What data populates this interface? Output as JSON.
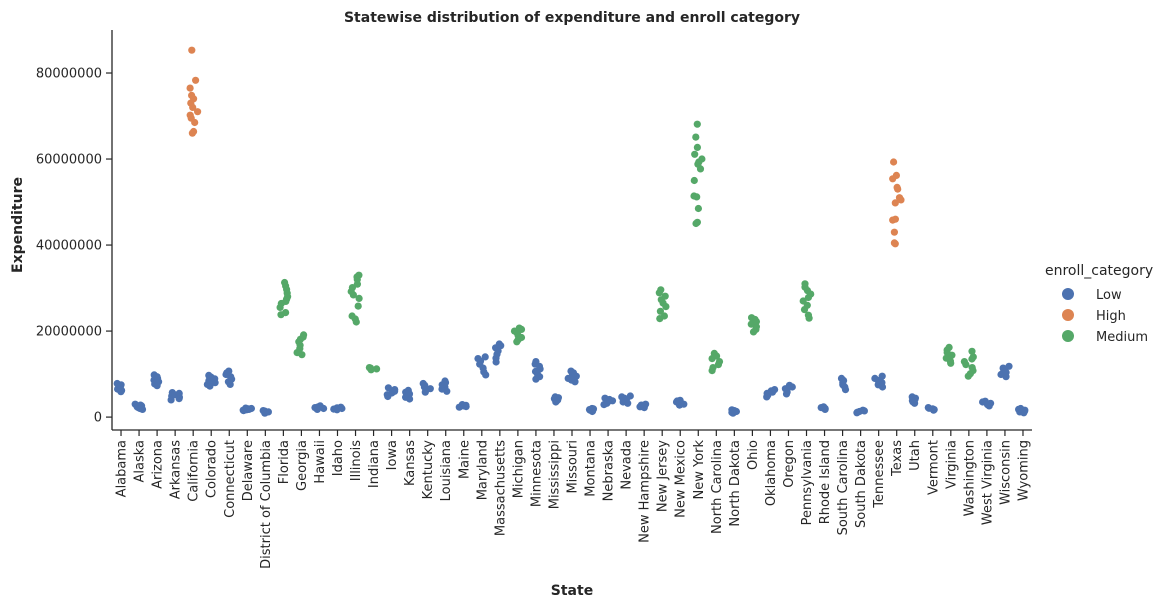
{
  "chart_data": {
    "type": "scatter",
    "subtype": "strip",
    "title": "Statewise distribution of expenditure and enroll category",
    "xlabel": "State",
    "ylabel": "Expenditure",
    "ylim": [
      -3000000,
      90000000
    ],
    "yticks": [
      0,
      20000000,
      40000000,
      60000000,
      80000000
    ],
    "ytick_labels": [
      "0",
      "20000000",
      "40000000",
      "60000000",
      "80000000"
    ],
    "grid": false,
    "legend": {
      "title": "enroll_category",
      "placement": "right",
      "entries": [
        "Low",
        "High",
        "Medium"
      ]
    },
    "colors": {
      "Low": "#4c72b0",
      "High": "#dd8452",
      "Medium": "#55a868"
    },
    "categories": [
      "Alabama",
      "Alaska",
      "Arizona",
      "Arkansas",
      "California",
      "Colorado",
      "Connecticut",
      "Delaware",
      "District of Columbia",
      "Florida",
      "Georgia",
      "Hawaii",
      "Idaho",
      "Illinois",
      "Indiana",
      "Iowa",
      "Kansas",
      "Kentucky",
      "Louisiana",
      "Maine",
      "Maryland",
      "Massachusetts",
      "Michigan",
      "Minnesota",
      "Mississippi",
      "Missouri",
      "Montana",
      "Nebraska",
      "Nevada",
      "New Hampshire",
      "New Jersey",
      "New Mexico",
      "New York",
      "North Carolina",
      "North Dakota",
      "Ohio",
      "Oklahoma",
      "Oregon",
      "Pennsylvania",
      "Rhode Island",
      "South Carolina",
      "South Dakota",
      "Tennessee",
      "Texas",
      "Utah",
      "Vermont",
      "Virginia",
      "Washington",
      "West Virginia",
      "Wisconsin",
      "Wyoming"
    ],
    "points": [
      {
        "state": "Alabama",
        "category": "Low",
        "values": [
          5900000,
          6200000,
          6500000,
          6900000,
          7200000,
          7500000,
          7800000
        ]
      },
      {
        "state": "Alaska",
        "category": "Low",
        "values": [
          1800000,
          2000000,
          2200000,
          2400000,
          2600000,
          2800000,
          3000000
        ]
      },
      {
        "state": "Arizona",
        "category": "Low",
        "values": [
          7300000,
          7700000,
          8200000,
          8600000,
          9000000,
          9400000,
          9800000
        ]
      },
      {
        "state": "Arkansas",
        "category": "Low",
        "values": [
          4000000,
          4300000,
          4600000,
          4900000,
          5200000,
          5500000,
          5700000
        ]
      },
      {
        "state": "California",
        "category": "High",
        "values": [
          66000000,
          66400000,
          68500000,
          69500000,
          70200000,
          71000000,
          72000000,
          73000000,
          74000000,
          74800000,
          76500000,
          78300000,
          85300000
        ]
      },
      {
        "state": "Colorado",
        "category": "Low",
        "values": [
          7200000,
          7600000,
          8000000,
          8500000,
          8900000,
          9300000,
          9700000
        ]
      },
      {
        "state": "Connecticut",
        "category": "Low",
        "values": [
          7600000,
          8200000,
          8800000,
          9400000,
          9900000,
          10300000,
          10700000
        ]
      },
      {
        "state": "Delaware",
        "category": "Low",
        "values": [
          1500000,
          1600000,
          1700000,
          1800000,
          1900000,
          2000000,
          2100000
        ]
      },
      {
        "state": "District of Columbia",
        "category": "Low",
        "values": [
          900000,
          1000000,
          1100000,
          1200000,
          1300000,
          1400000,
          1500000
        ]
      },
      {
        "state": "Florida",
        "category": "Medium",
        "values": [
          23800000,
          24300000,
          25500000,
          26400000,
          26900000,
          27400000,
          28000000,
          28800000,
          29700000,
          30500000,
          31300000
        ]
      },
      {
        "state": "Georgia",
        "category": "Medium",
        "values": [
          14500000,
          15000000,
          15900000,
          16700000,
          17500000,
          18100000,
          18600000,
          19100000
        ]
      },
      {
        "state": "Hawaii",
        "category": "Low",
        "values": [
          1800000,
          2000000,
          2200000,
          2400000,
          2600000
        ]
      },
      {
        "state": "Idaho",
        "category": "Low",
        "values": [
          1700000,
          1850000,
          2000000,
          2150000,
          2300000
        ]
      },
      {
        "state": "Illinois",
        "category": "Medium",
        "values": [
          22100000,
          22800000,
          23500000,
          25800000,
          27600000,
          28400000,
          29200000,
          30100000,
          30900000,
          32000000,
          32600000,
          33000000
        ]
      },
      {
        "state": "Indiana",
        "category": "Medium",
        "values": [
          11000000,
          11200000,
          11400000,
          11500000
        ]
      },
      {
        "state": "Iowa",
        "category": "Low",
        "values": [
          4800000,
          5200000,
          5600000,
          6000000,
          6400000,
          6800000
        ]
      },
      {
        "state": "Kansas",
        "category": "Low",
        "values": [
          4200000,
          4600000,
          5000000,
          5400000,
          5800000,
          6200000
        ]
      },
      {
        "state": "Kentucky",
        "category": "Low",
        "values": [
          5800000,
          6200000,
          6600000,
          7000000,
          7400000,
          7800000
        ]
      },
      {
        "state": "Louisiana",
        "category": "Low",
        "values": [
          6000000,
          6500000,
          7000000,
          7500000,
          8000000,
          8400000
        ]
      },
      {
        "state": "Maine",
        "category": "Low",
        "values": [
          2300000,
          2450000,
          2600000,
          2750000,
          2900000
        ]
      },
      {
        "state": "Maryland",
        "category": "Low",
        "values": [
          9800000,
          10500000,
          11400000,
          12300000,
          13000000,
          13600000,
          14000000
        ]
      },
      {
        "state": "Massachusetts",
        "category": "Low",
        "values": [
          12800000,
          13700000,
          14600000,
          15400000,
          16100000,
          16600000,
          17000000
        ]
      },
      {
        "state": "Michigan",
        "category": "Medium",
        "values": [
          17500000,
          18000000,
          18500000,
          19000000,
          19500000,
          20000000,
          20400000,
          20700000
        ]
      },
      {
        "state": "Minnesota",
        "category": "Low",
        "values": [
          8800000,
          9400000,
          10000000,
          10600000,
          11200000,
          11800000,
          12300000,
          12900000
        ]
      },
      {
        "state": "Mississippi",
        "category": "Low",
        "values": [
          3500000,
          3750000,
          4000000,
          4250000,
          4500000,
          4700000
        ]
      },
      {
        "state": "Missouri",
        "category": "Low",
        "values": [
          8200000,
          8600000,
          9000000,
          9500000,
          9900000,
          10300000,
          10700000
        ]
      },
      {
        "state": "Montana",
        "category": "Low",
        "values": [
          1300000,
          1450000,
          1600000,
          1750000,
          1900000,
          2000000
        ]
      },
      {
        "state": "Nebraska",
        "category": "Low",
        "values": [
          2900000,
          3200000,
          3500000,
          3800000,
          4100000,
          4400000
        ]
      },
      {
        "state": "Nevada",
        "category": "Low",
        "values": [
          3200000,
          3500000,
          3800000,
          4100000,
          4400000,
          4700000,
          4900000
        ]
      },
      {
        "state": "New Hampshire",
        "category": "Low",
        "values": [
          2200000,
          2400000,
          2600000,
          2800000,
          3000000
        ]
      },
      {
        "state": "New Jersey",
        "category": "Medium",
        "values": [
          22900000,
          23500000,
          24600000,
          25700000,
          26500000,
          27300000,
          28100000,
          28900000,
          29600000
        ]
      },
      {
        "state": "New Mexico",
        "category": "Low",
        "values": [
          2800000,
          3000000,
          3250000,
          3500000,
          3750000,
          3900000
        ]
      },
      {
        "state": "New York",
        "category": "Medium",
        "values": [
          45000000,
          45300000,
          48500000,
          51200000,
          51400000,
          55000000,
          57700000,
          58800000,
          59300000,
          60000000,
          61100000,
          62700000,
          65100000,
          68100000
        ]
      },
      {
        "state": "North Carolina",
        "category": "Medium",
        "values": [
          10800000,
          11500000,
          12200000,
          12900000,
          13600000,
          14200000,
          14800000
        ]
      },
      {
        "state": "North Dakota",
        "category": "Low",
        "values": [
          900000,
          1100000,
          1300000,
          1500000,
          1700000
        ]
      },
      {
        "state": "Ohio",
        "category": "Medium",
        "values": [
          19800000,
          20400000,
          21000000,
          21600000,
          22200000,
          22700000,
          23100000
        ]
      },
      {
        "state": "Oklahoma",
        "category": "Low",
        "values": [
          4700000,
          5100000,
          5500000,
          5800000,
          6100000,
          6400000
        ]
      },
      {
        "state": "Oregon",
        "category": "Low",
        "values": [
          5400000,
          5800000,
          6200000,
          6600000,
          7000000,
          7400000
        ]
      },
      {
        "state": "Pennsylvania",
        "category": "Medium",
        "values": [
          23000000,
          23700000,
          25000000,
          26000000,
          27000000,
          27800000,
          28600000,
          29400000,
          30200000,
          31000000
        ]
      },
      {
        "state": "Rhode Island",
        "category": "Low",
        "values": [
          1800000,
          2000000,
          2200000,
          2400000
        ]
      },
      {
        "state": "South Carolina",
        "category": "Low",
        "values": [
          6400000,
          7000000,
          7500000,
          8000000,
          8500000,
          9000000
        ]
      },
      {
        "state": "South Dakota",
        "category": "Low",
        "values": [
          1000000,
          1150000,
          1300000,
          1450000,
          1600000
        ]
      },
      {
        "state": "Tennessee",
        "category": "Low",
        "values": [
          7000000,
          7500000,
          8000000,
          8500000,
          9000000,
          9500000
        ]
      },
      {
        "state": "Texas",
        "category": "High",
        "values": [
          40300000,
          40500000,
          43000000,
          45800000,
          46000000,
          49800000,
          50500000,
          51000000,
          53000000,
          53400000,
          55400000,
          56200000,
          59300000
        ]
      },
      {
        "state": "Utah",
        "category": "Low",
        "values": [
          3200000,
          3500000,
          3800000,
          4100000,
          4400000,
          4700000
        ]
      },
      {
        "state": "Vermont",
        "category": "Low",
        "values": [
          1600000,
          1750000,
          1900000,
          2050000,
          2200000
        ]
      },
      {
        "state": "Virginia",
        "category": "Medium",
        "values": [
          12500000,
          13000000,
          13700000,
          14400000,
          15000000,
          15600000,
          16200000
        ]
      },
      {
        "state": "Washington",
        "category": "Medium",
        "values": [
          9500000,
          10100000,
          10800000,
          11500000,
          12200000,
          12900000,
          13500000,
          14000000,
          15300000
        ]
      },
      {
        "state": "West Virginia",
        "category": "Low",
        "values": [
          2600000,
          2900000,
          3200000,
          3500000,
          3700000
        ]
      },
      {
        "state": "Wisconsin",
        "category": "Low",
        "values": [
          9400000,
          9900000,
          10400000,
          10900000,
          11400000,
          11800000
        ]
      },
      {
        "state": "Wyoming",
        "category": "Low",
        "values": [
          1000000,
          1200000,
          1400000,
          1600000,
          1800000,
          2000000
        ]
      }
    ]
  }
}
